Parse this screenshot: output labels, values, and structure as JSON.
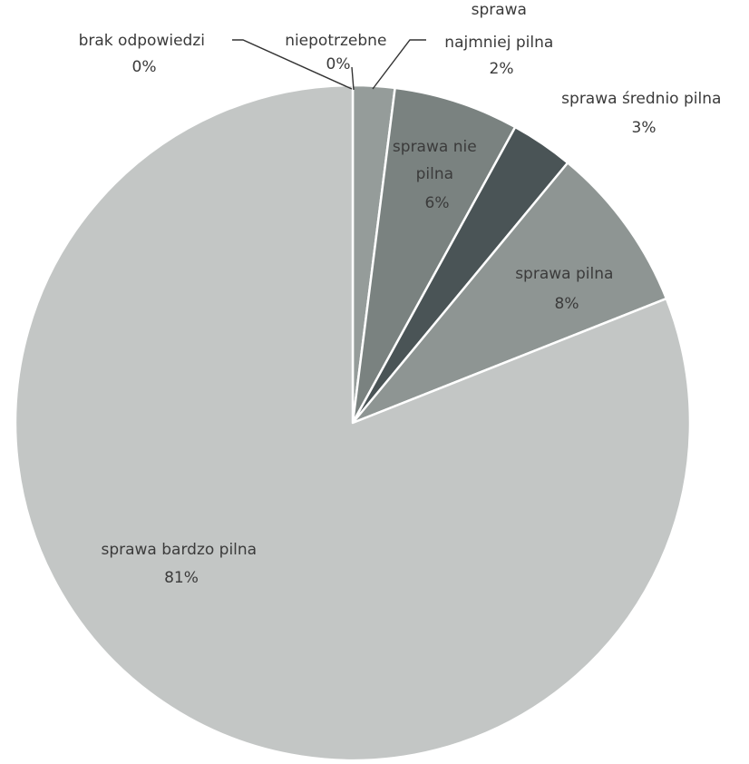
{
  "chart_data": {
    "type": "pie",
    "title": "",
    "legend": "none",
    "slices": [
      {
        "label": "brak odpowiedzi",
        "value": 0,
        "display": "0%",
        "color": "#7e8684"
      },
      {
        "label": "niepotrzebne",
        "value": 0,
        "display": "0%",
        "color": "#8c9391"
      },
      {
        "label": "sprawa najmniej pilna",
        "value": 2,
        "display": "2%",
        "color": "#959c9a"
      },
      {
        "label": "sprawa nie pilna",
        "value": 6,
        "display": "6%",
        "color": "#7a8280"
      },
      {
        "label": "sprawa średnio pilna",
        "value": 3,
        "display": "3%",
        "color": "#4a5456"
      },
      {
        "label": "sprawa pilna",
        "value": 8,
        "display": "8%",
        "color": "#8e9593"
      },
      {
        "label": "sprawa bardzo pilna",
        "value": 81,
        "display": "81%",
        "color": "#c3c6c5"
      }
    ]
  },
  "labels": {
    "brak_line1": "brak odpowiedzi",
    "brak_pct": "0%",
    "niepotrzebne_line1": "niepotrzebne",
    "niepotrzebne_pct": "0%",
    "najmniej_line1": "sprawa",
    "najmniej_line2": "najmniej pilna",
    "najmniej_pct": "2%",
    "srednio_line1": "sprawa średnio pilna",
    "srednio_pct": "3%",
    "niepilna_line1": "sprawa nie",
    "niepilna_line2": "pilna",
    "niepilna_pct": "6%",
    "pilna_line1": "sprawa pilna",
    "pilna_pct": "8%",
    "bardzo_line1": "sprawa bardzo pilna",
    "bardzo_pct": "81%"
  }
}
